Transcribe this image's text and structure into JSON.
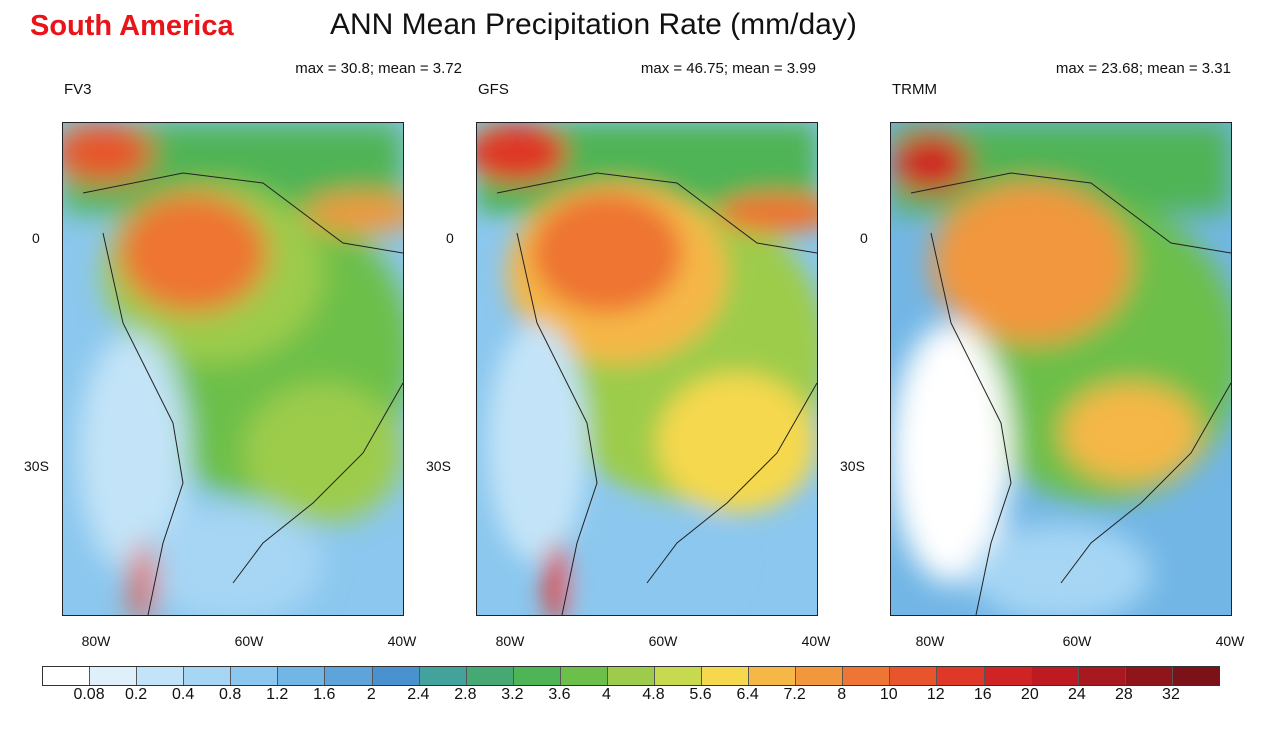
{
  "header": {
    "region": "South America",
    "title": "ANN Mean Precipitation Rate (mm/day)"
  },
  "panels": [
    {
      "name": "FV3",
      "stats": "max = 30.8; mean = 3.72"
    },
    {
      "name": "GFS",
      "stats": "max = 46.75; mean = 3.99"
    },
    {
      "name": "TRMM",
      "stats": "max = 23.68; mean = 3.31"
    }
  ],
  "axes": {
    "lat_ticks": [
      "0",
      "30S"
    ],
    "lon_ticks": [
      "80W",
      "60W",
      "40W"
    ]
  },
  "colorbar": {
    "labels": [
      "0.08",
      "0.2",
      "0.4",
      "0.8",
      "1.2",
      "1.6",
      "2",
      "2.4",
      "2.8",
      "3.2",
      "3.6",
      "4",
      "4.8",
      "5.6",
      "6.4",
      "7.2",
      "8",
      "10",
      "12",
      "16",
      "20",
      "24",
      "28",
      "32"
    ],
    "colors": [
      "#ffffff",
      "#dff0fb",
      "#c3e4f8",
      "#a6d6f4",
      "#8bc7ee",
      "#72b6e6",
      "#5ea4db",
      "#4a92cf",
      "#43a29b",
      "#46a872",
      "#4fb455",
      "#6cbf4a",
      "#9dcc4c",
      "#c6d94f",
      "#f5d84e",
      "#f5b746",
      "#f2973c",
      "#ee7533",
      "#e8542c",
      "#df3728",
      "#d02324",
      "#bd1a22",
      "#a8181f",
      "#8f151b",
      "#7a1218"
    ]
  }
}
